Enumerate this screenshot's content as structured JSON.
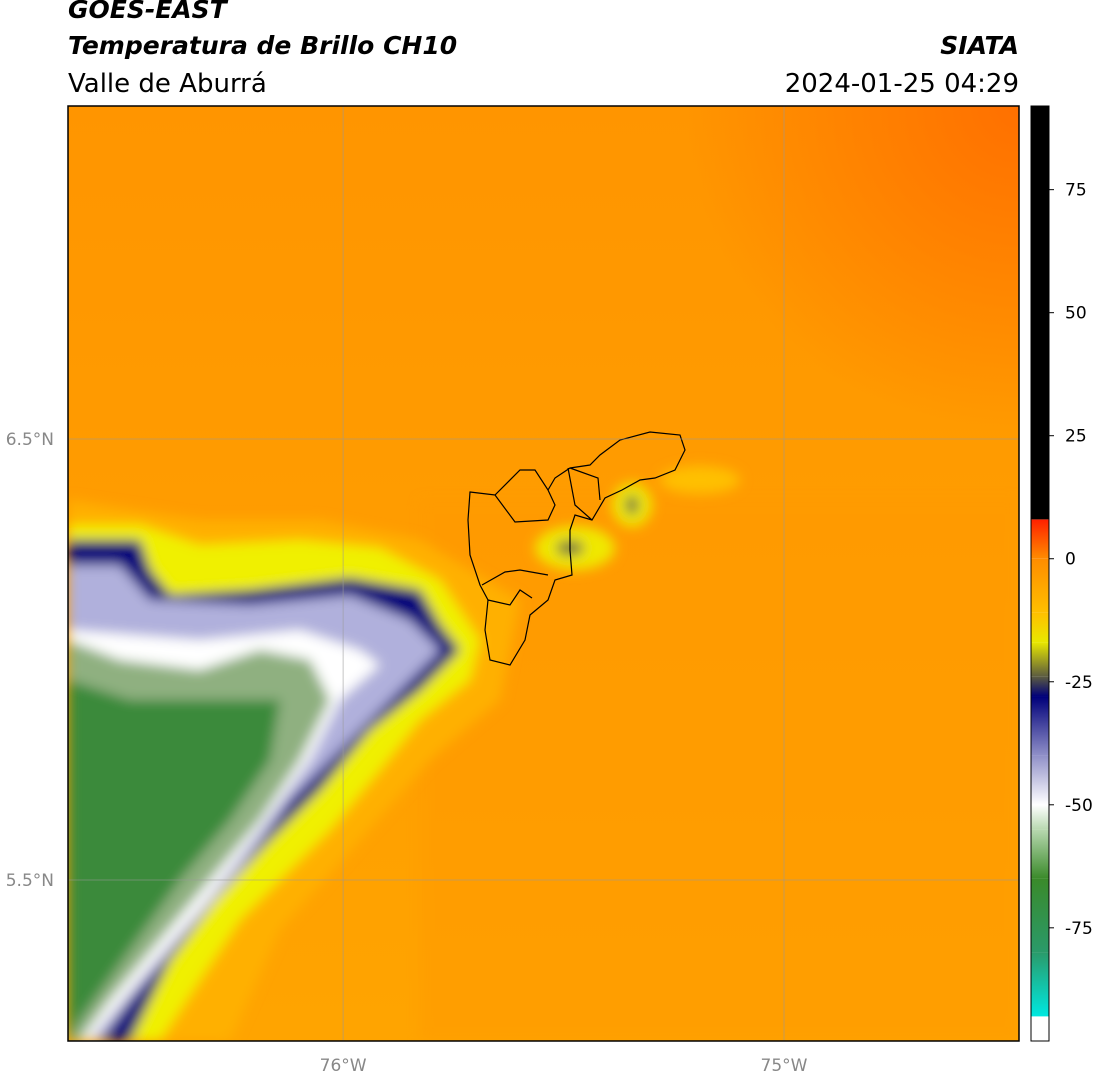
{
  "map": {
    "title": "GOES-EAST",
    "subtitle": "Temperatura de Brillo CH10",
    "source": "SIATA",
    "region": "Valle de Aburrá",
    "datetime": "2024-01-25 04:29",
    "xlim": [
      -76.624,
      -74.467
    ],
    "ylim": [
      5.135,
      7.255
    ],
    "xticks": [
      {
        "value": -76,
        "label": "76°W"
      },
      {
        "value": -75,
        "label": "75°W"
      }
    ],
    "yticks": [
      {
        "value": 6.5,
        "label": "6.5°N"
      },
      {
        "value": 5.5,
        "label": "5.5°N"
      }
    ],
    "grid": true
  },
  "colorbar": {
    "lim": [
      -98,
      92
    ],
    "ticks": [
      75,
      50,
      25,
      0,
      -25,
      -50,
      -75
    ],
    "stops": [
      {
        "value": -98,
        "color": "#ffffff"
      },
      {
        "value": -93,
        "color": "#ffffff"
      },
      {
        "value": -93,
        "color": "#00e8e0"
      },
      {
        "value": -80,
        "color": "#2a9a6a"
      },
      {
        "value": -65,
        "color": "#3a8a2a"
      },
      {
        "value": -55,
        "color": "#b8d8b0"
      },
      {
        "value": -50,
        "color": "#ffffff"
      },
      {
        "value": -40,
        "color": "#9090c8"
      },
      {
        "value": -28,
        "color": "#00007a"
      },
      {
        "value": -24,
        "color": "#5a5a40"
      },
      {
        "value": -17,
        "color": "#e8e800"
      },
      {
        "value": -11,
        "color": "#ffc000"
      },
      {
        "value": 0,
        "color": "#ff8c00"
      },
      {
        "value": 8,
        "color": "#ff2000"
      },
      {
        "value": 8,
        "color": "#000000"
      },
      {
        "value": 92,
        "color": "#000000"
      }
    ]
  }
}
